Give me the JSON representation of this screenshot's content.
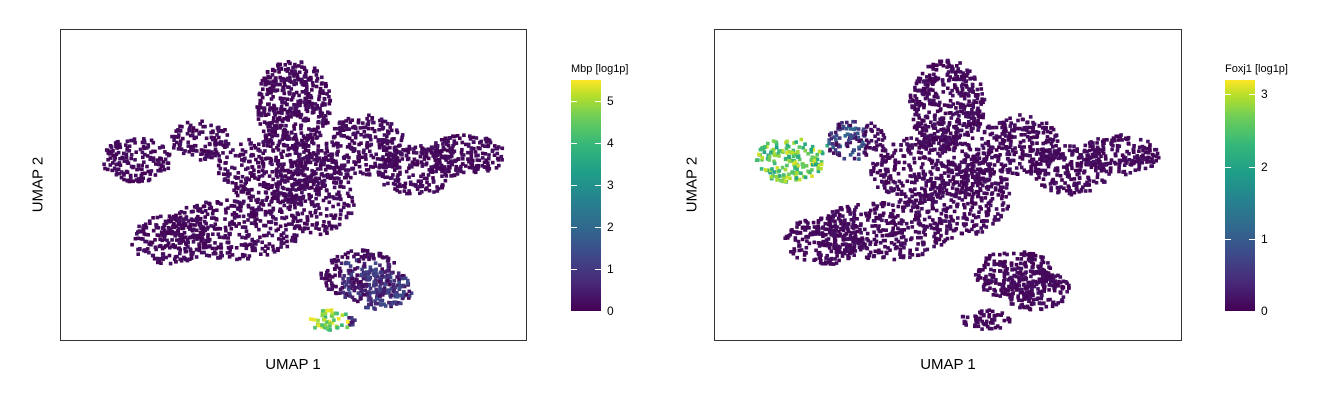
{
  "chart_data": [
    {
      "type": "heatmap",
      "subtype": "hexbin-umap",
      "xlabel": "UMAP 1",
      "ylabel": "UMAP 2",
      "legend_title": "Mbp [log1p]",
      "legend_placement": "right",
      "colorscale": "viridis",
      "color_range": [
        0,
        5.5
      ],
      "legend_ticks": [
        "0",
        "1",
        "2",
        "3",
        "4",
        "5"
      ],
      "grid": false,
      "highlight_region": "bottom-center cluster tip (high expression ~4-5.5)"
    },
    {
      "type": "heatmap",
      "subtype": "hexbin-umap",
      "xlabel": "UMAP 1",
      "ylabel": "UMAP 2",
      "legend_title": "Foxj1 [log1p]",
      "legend_placement": "right",
      "colorscale": "viridis",
      "color_range": [
        0,
        3.2
      ],
      "legend_ticks": [
        "0",
        "1",
        "2",
        "3"
      ],
      "grid": false,
      "highlight_region": "upper-left loop cluster (high expression ~2-3)"
    }
  ],
  "colors": {
    "low": "#440154",
    "mid": "#21918c",
    "high": "#fde725"
  }
}
